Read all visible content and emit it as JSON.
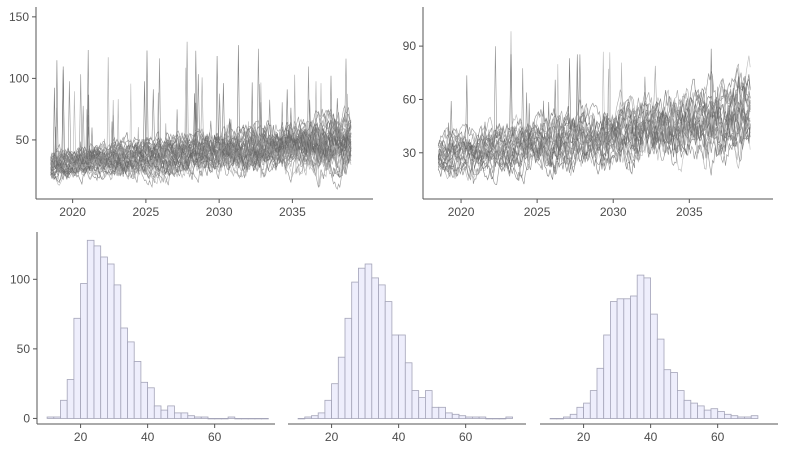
{
  "colors": {
    "line_series": "#707070",
    "hist_fill": "#eeeefc",
    "hist_stroke": "#a4a4b8",
    "axis": "#555555",
    "tick_text": "#4d4d4d",
    "background": "#ffffff"
  },
  "chart_data": [
    {
      "id": "timeseries-left",
      "type": "line",
      "description_of_marks": "many overlaid grey simulated trajectories",
      "n_series": 40,
      "x_range": [
        2018.5,
        2039
      ],
      "xlim": [
        2017.5,
        2040.5
      ],
      "ylim": [
        2,
        158
      ],
      "x_ticks": [
        2020,
        2025,
        2030,
        2035
      ],
      "x_tick_labels": [
        "2020",
        "2025",
        "2030",
        "2035"
      ],
      "y_ticks": [
        50,
        100,
        150
      ],
      "y_tick_labels": [
        "50",
        "100",
        "150"
      ],
      "trend": {
        "start_mean": 30,
        "end_mean": 48,
        "start_spread": 7,
        "end_spread": 14
      },
      "max_peak": 150,
      "grid": false,
      "legend": "none"
    },
    {
      "id": "timeseries-right",
      "type": "line",
      "description_of_marks": "many overlaid grey simulated trajectories",
      "n_series": 25,
      "x_range": [
        2018.5,
        2039
      ],
      "xlim": [
        2017.5,
        2040.5
      ],
      "ylim": [
        4,
        112
      ],
      "x_ticks": [
        2020,
        2025,
        2030,
        2035
      ],
      "x_tick_labels": [
        "2020",
        "2025",
        "2030",
        "2035"
      ],
      "y_ticks": [
        30,
        60,
        90
      ],
      "y_tick_labels": [
        "30",
        "60",
        "90"
      ],
      "trend": {
        "start_mean": 28,
        "end_mean": 50,
        "start_spread": 7,
        "end_spread": 14
      },
      "max_peak": 110,
      "grid": false,
      "legend": "none"
    },
    {
      "id": "histogram-1",
      "type": "bar",
      "bin_width": 2,
      "bin_start": 10,
      "xlim": [
        7,
        78
      ],
      "ylim": [
        -4,
        134
      ],
      "counts": [
        1,
        1,
        13,
        28,
        72,
        97,
        128,
        124,
        116,
        111,
        96,
        65,
        55,
        41,
        26,
        22,
        9,
        6,
        9,
        4,
        4,
        2,
        1,
        1,
        0,
        0,
        0,
        1,
        0,
        0,
        0,
        0,
        0
      ],
      "x_ticks": [
        20,
        40,
        60
      ],
      "x_tick_labels": [
        "20",
        "40",
        "60"
      ],
      "y_ticks": [
        0,
        50,
        100
      ],
      "y_tick_labels": [
        "0",
        "50",
        "100"
      ],
      "show_y_axis": true
    },
    {
      "id": "histogram-2",
      "type": "bar",
      "bin_width": 2,
      "bin_start": 10,
      "xlim": [
        7,
        78
      ],
      "ylim": [
        -4,
        134
      ],
      "counts": [
        0,
        1,
        2,
        4,
        13,
        25,
        44,
        72,
        98,
        108,
        111,
        101,
        96,
        84,
        60,
        60,
        40,
        20,
        15,
        20,
        8,
        8,
        4,
        3,
        2,
        1,
        1,
        1,
        0,
        0,
        0,
        1
      ],
      "x_ticks": [
        20,
        40,
        60
      ],
      "x_tick_labels": [
        "20",
        "40",
        "60"
      ],
      "show_y_axis": false
    },
    {
      "id": "histogram-3",
      "type": "bar",
      "bin_width": 2,
      "bin_start": 10,
      "xlim": [
        7,
        78
      ],
      "ylim": [
        -4,
        134
      ],
      "counts": [
        0,
        0,
        1,
        3,
        8,
        11,
        20,
        36,
        60,
        84,
        86,
        86,
        88,
        103,
        101,
        75,
        57,
        35,
        33,
        20,
        13,
        11,
        9,
        6,
        7,
        5,
        3,
        2,
        1,
        1,
        2
      ],
      "x_ticks": [
        20,
        40,
        60
      ],
      "x_tick_labels": [
        "20",
        "40",
        "60"
      ],
      "show_y_axis": false
    }
  ]
}
